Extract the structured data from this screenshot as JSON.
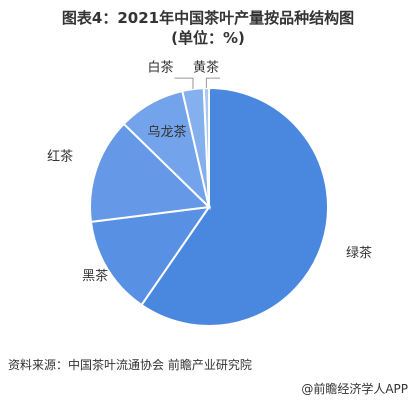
{
  "chart_data": {
    "type": "pie",
    "title": "图表4：2021年中国茶叶产量按品种结构图(单位：%)",
    "categories": [
      "绿茶",
      "黑茶",
      "红茶",
      "乌龙茶",
      "白茶",
      "黄茶"
    ],
    "values": [
      59.6,
      13.4,
      14.3,
      9.1,
      2.9,
      0.7
    ],
    "colors": [
      "#4a88e0",
      "#5890e4",
      "#6599e7",
      "#73a3ea",
      "#85b0ee",
      "#a9c8f4"
    ],
    "source": "资料来源：中国茶叶流通协会 前瞻产业研究院",
    "credit": "@前瞻经济学人APP"
  }
}
